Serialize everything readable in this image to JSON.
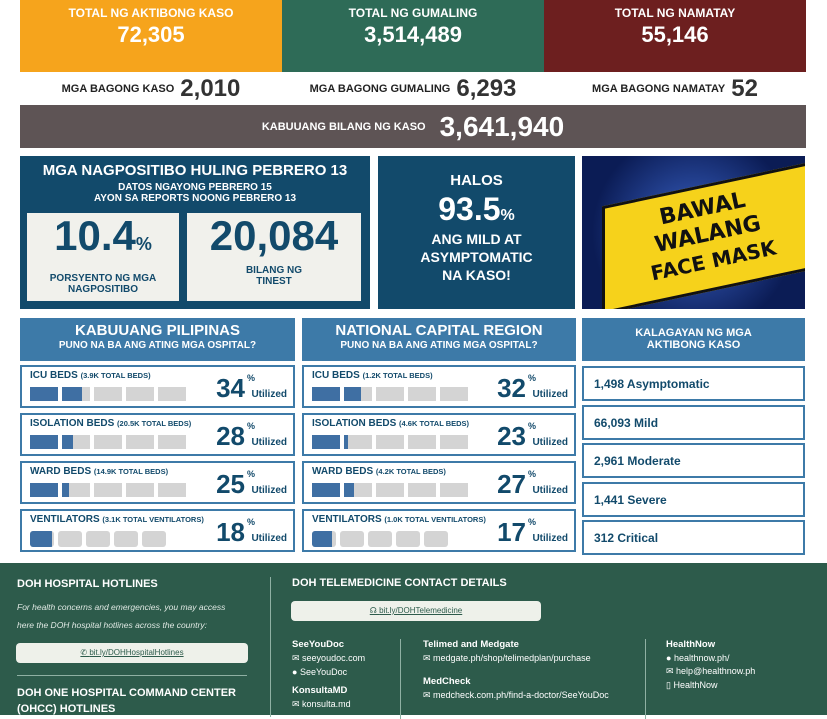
{
  "totals": [
    {
      "label": "TOTAL NG AKTIBONG KASO",
      "value": "72,305",
      "color": "#f6a41c"
    },
    {
      "label": "TOTAL NG GUMALING",
      "value": "3,514,489",
      "color": "#2e6b57"
    },
    {
      "label": "TOTAL NG NAMATAY",
      "value": "55,146",
      "color": "#6d1f1f"
    }
  ],
  "new": [
    {
      "label": "MGA BAGONG KASO",
      "value": "2,010"
    },
    {
      "label": "MGA BAGONG GUMALING",
      "value": "6,293"
    },
    {
      "label": "MGA BAGONG NAMATAY",
      "value": "52"
    }
  ],
  "cumulative": {
    "label": "KABUUANG BILANG NG KASO",
    "value": "3,641,940"
  },
  "positivity": {
    "title": "MGA NAGPOSITIBO HULING PEBRERO 13",
    "sub1": "DATOS NGAYONG PEBRERO 15",
    "sub2": "AYON SA REPORTS NOONG PEBRERO 13",
    "rate": "10.4",
    "rate_unit": "%",
    "rate_label1": "PORSYENTO NG MGA",
    "rate_label2": "NAGPOSITIBO",
    "tested": "20,084",
    "tested_label1": "BILANG NG",
    "tested_label2": "TINEST"
  },
  "mild": {
    "l1": "HALOS",
    "value": "93.5",
    "unit": "%",
    "l2": "ANG MILD AT",
    "l3": "ASYMPTOMATIC",
    "l4": "NA KASO!"
  },
  "mask": {
    "l1": "BAWAL",
    "l2": "WALANG",
    "l3": "FACE MASK"
  },
  "sections": [
    {
      "title": "KABUUANG PILIPINAS",
      "sub": "PUNO NA BA ANG ATING MGA OSPITAL?",
      "rows": [
        {
          "name": "ICU BEDS",
          "total": "(3.9K TOTAL BEDS)",
          "pct": 34,
          "type": "bed"
        },
        {
          "name": "ISOLATION BEDS",
          "total": "(20.5K TOTAL BEDS)",
          "pct": 28,
          "type": "bed"
        },
        {
          "name": "WARD BEDS",
          "total": "(14.9K TOTAL BEDS)",
          "pct": 25,
          "type": "bed"
        },
        {
          "name": "VENTILATORS",
          "total": "(3.1K TOTAL VENTILATORS)",
          "pct": 18,
          "type": "vent"
        }
      ]
    },
    {
      "title": "NATIONAL CAPITAL REGION",
      "sub": "PUNO NA BA ANG ATING MGA OSPITAL?",
      "rows": [
        {
          "name": "ICU BEDS",
          "total": "(1.2K TOTAL BEDS)",
          "pct": 32,
          "type": "bed"
        },
        {
          "name": "ISOLATION BEDS",
          "total": "(4.6K TOTAL BEDS)",
          "pct": 23,
          "type": "bed"
        },
        {
          "name": "WARD BEDS",
          "total": "(4.2K TOTAL BEDS)",
          "pct": 27,
          "type": "bed"
        },
        {
          "name": "VENTILATORS",
          "total": "(1.0K TOTAL VENTILATORS)",
          "pct": 17,
          "type": "vent"
        }
      ]
    }
  ],
  "pct_sign": "%",
  "utilized": "Utilized",
  "status": {
    "title1": "KALAGAYAN NG MGA",
    "title2": "AKTIBONG KASO",
    "items": [
      "1,498 Asymptomatic",
      "66,093 Mild",
      "2,961 Moderate",
      "1,441 Severe",
      "312 Critical"
    ]
  },
  "footer": {
    "hotlines_title": "DOH HOSPITAL HOTLINES",
    "hotlines_desc1": "For health concerns and emergencies, you may access",
    "hotlines_desc2": "here the DOH hospital hotlines across the country:",
    "hotlines_link": "bit.ly/DOHHospitalHotlines",
    "ohcc_title1": "DOH ONE HOSPITAL COMMAND CENTER",
    "ohcc_title2": "(OHCC) HOTLINES",
    "tele_title": "DOH TELEMEDICINE CONTACT DETAILS",
    "tele_link": "bit.ly/DOHTelemedicine",
    "seeyoudoc": {
      "name": "SeeYouDoc",
      "web": "seeyoudoc.com",
      "fb": "SeeYouDoc"
    },
    "konsulta": {
      "name": "KonsultaMD",
      "web": "konsulta.md"
    },
    "telimed": {
      "name": "Telimed and Medgate",
      "web": "medgate.ph/shop/telimedplan/purchase"
    },
    "medcheck": {
      "name": "MedCheck",
      "web": "medcheck.com.ph/find-a-doctor/SeeYouDoc"
    },
    "healthnow": {
      "name": "HealthNow",
      "web": "healthnow.ph/",
      "email": "help@healthnow.ph",
      "app": "HealthNow"
    }
  }
}
